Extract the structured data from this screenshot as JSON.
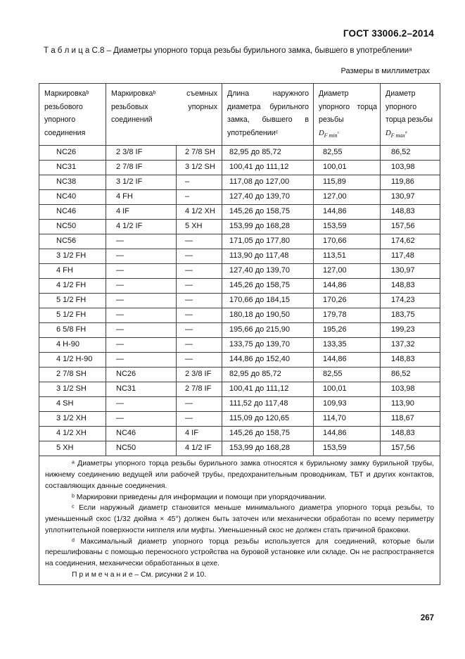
{
  "page": {
    "standard": "ГОСТ 33006.2–2014",
    "caption": "Т а б л и ц а   С.8 – Диаметры упорного торца резьбы бурильного замка, бывшего в употребленииᵃ",
    "units_note": "Размеры в миллиметрах",
    "page_number": "267"
  },
  "table": {
    "headers": {
      "col1": "Маркировкаᵇ резьбового упорного соединения",
      "col2_3": "Маркировкаᵇ съемных резьбовых упорных соединений",
      "col4": "Длина наружного диаметра бурильного замка, бывшего в употребленииᶜ",
      "col5": {
        "title": "Диаметр упорного торца резьбы",
        "symbol": "D",
        "sub": "F min",
        "sup_mark": "ᶜ"
      },
      "col6": {
        "title": "Диаметр упорного торца резьбы",
        "symbol": "D",
        "sub": "F max",
        "sup_mark": "ᵈ"
      }
    },
    "rows": [
      [
        "NC26",
        "2 3/8 IF",
        "2 7/8 SH",
        "82,95 до 85,72",
        "82,55",
        "86,52"
      ],
      [
        "NC31",
        "2 7/8 IF",
        "3 1/2 SH",
        "100,41 до 111,12",
        "100,01",
        "103,98"
      ],
      [
        "NC38",
        "3 1/2 IF",
        "–",
        "117,08 до 127,00",
        "115,89",
        "119,86"
      ],
      [
        "NC40",
        "4 FH",
        "–",
        "127,40 до 139,70",
        "127,00",
        "130,97"
      ],
      [
        "NC46",
        "4 IF",
        "4 1/2 XH",
        "145,26 до 158,75",
        "144,86",
        "148,83"
      ],
      [
        "NC50",
        "4 1/2 IF",
        "5 XH",
        "153,99 до 168,28",
        "153,59",
        "157,56"
      ],
      [
        "NC56",
        "—",
        "—",
        "171,05 до 177,80",
        "170,66",
        "174,62"
      ],
      [
        "3 1/2 FH",
        "—",
        "—",
        "113,90 до 117,48",
        "113,51",
        "117,48"
      ],
      [
        "4 FH",
        "—",
        "—",
        "127,40 до 139,70",
        "127,00",
        "130,97"
      ],
      [
        "4 1/2 FH",
        "—",
        "—",
        "145,26 до 158,75",
        "144,86",
        "148,83"
      ],
      [
        "5 1/2 FH",
        "—",
        "—",
        "170,66 до 184,15",
        "170,26",
        "174,23"
      ],
      [
        "5 1/2 FH",
        "—",
        "—",
        "180,18 до 190,50",
        "179,78",
        "183,75"
      ],
      [
        "6 5/8 FH",
        "—",
        "—",
        "195,66 до 215,90",
        "195,26",
        "199,23"
      ],
      [
        "4 H-90",
        "—",
        "—",
        "133,75 до 139,70",
        "133,35",
        "137,32"
      ],
      [
        "4 1/2 H-90",
        "—",
        "—",
        "144,86 до 152,40",
        "144,86",
        "148,83"
      ],
      [
        "2 7/8 SH",
        "NC26",
        "2 3/8 IF",
        "82,95 до 85,72",
        "82,55",
        "86,52"
      ],
      [
        "3 1/2 SH",
        "NC31",
        "2 7/8 IF",
        "100,41 до 111,12",
        "100,01",
        "103,98"
      ],
      [
        "4 SH",
        "—",
        "—",
        "111,52 до 117,48",
        "109,93",
        "113,90"
      ],
      [
        "3 1/2 XH",
        "—",
        "—",
        "115,09 до 120,65",
        "114,70",
        "118,67"
      ],
      [
        "4 1/2 XH",
        "NC46",
        "4 IF",
        "145,26 до 158,75",
        "144,86",
        "148,83"
      ],
      [
        "5 XH",
        "NC50",
        "4 1/2 IF",
        "153,99 до 168,28",
        "153,59",
        "157,56"
      ]
    ]
  },
  "footnotes": [
    "ᵃ Диаметры упорного торца резьбы бурильного замка относятся к бурильному замку бурильной трубы, нижнему соединению ведущей или рабочей трубы, предохранительным проводникам, ТБТ и других контактов, составляющих данные соединения.",
    "ᵇ Маркировки приведены для информации и помощи при упорядочивании.",
    "ᶜ Если наружный диаметр становится меньше минимального диаметра упорного торца резьбы, то уменьшенный скос (1/32 дюйма × 45°) должен быть заточен или механически обработан по всему периметру уплотнительной поверхности ниппеля или муфты. Уменьшенный скос не должен стать причиной браковки.",
    "ᵈ Максимальный диаметр упорного торца резьбы используется для соединений, которые были перешлифованы с помощью переносного устройства на буровой установке или складе. Он не распространяется на соединения, механически обработанных в цехе."
  ],
  "note": "П р и м е ч а н и е   – См. рисунки 2 и 10."
}
